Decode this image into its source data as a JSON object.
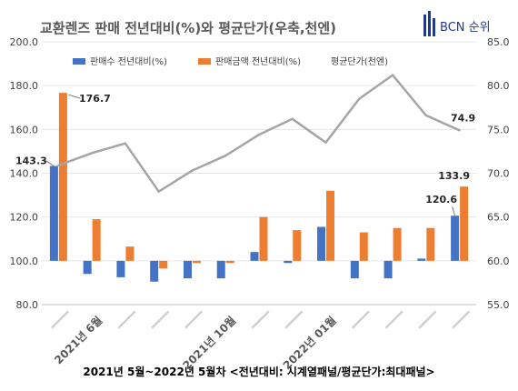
{
  "chart_data": {
    "type": "bar",
    "title": "교환렌즈 판매 전년대비(%)와 평균단가(우축,천엔)",
    "footer": "2021년 5월~2022년 5월차 <전년대비: 시계열패널/평균단가:최대패널>",
    "logo_text": "BCN 순위",
    "categories": [
      "",
      "2021년 6월",
      "",
      "",
      "",
      "2021년 10월",
      "",
      "",
      "2022년 01월",
      "",
      "",
      "",
      ""
    ],
    "y_left": {
      "min": 80,
      "max": 200,
      "ticks": [
        "80.0",
        "100.0",
        "120.0",
        "140.0",
        "160.0",
        "180.0",
        "200.0"
      ]
    },
    "y_right": {
      "min": 55,
      "max": 85,
      "ticks": [
        "55.0",
        "60.0",
        "65.0",
        "70.0",
        "75.0",
        "80.0",
        "85.0"
      ]
    },
    "series": [
      {
        "name": "판매수 전년대비(%)",
        "kind": "bar",
        "axis": "left",
        "color": "#4472c4",
        "values": [
          143.3,
          94,
          92.5,
          90.5,
          92,
          92,
          104,
          99,
          115.5,
          92,
          92,
          101,
          120.6
        ]
      },
      {
        "name": "판매금액 전년대비(%)",
        "kind": "bar",
        "axis": "left",
        "color": "#ed7d31",
        "values": [
          176.7,
          119,
          106.5,
          96.5,
          99,
          99,
          120,
          114,
          132,
          113,
          115,
          115,
          133.9
        ]
      },
      {
        "name": "평균단가(천엔)",
        "kind": "line",
        "axis": "right",
        "color": "#a5a5a5",
        "values": [
          70.9,
          72.3,
          73.4,
          67.9,
          70.3,
          72,
          74.4,
          76.2,
          73.5,
          78.5,
          81.2,
          76.6,
          74.9
        ]
      }
    ],
    "data_labels": [
      {
        "series": 0,
        "index": 0,
        "text": "143.3"
      },
      {
        "series": 1,
        "index": 0,
        "text": "176.7"
      },
      {
        "series": 0,
        "index": 12,
        "text": "120.6"
      },
      {
        "series": 1,
        "index": 12,
        "text": "133.9"
      },
      {
        "series": 2,
        "index": 12,
        "text": "74.9"
      }
    ]
  }
}
